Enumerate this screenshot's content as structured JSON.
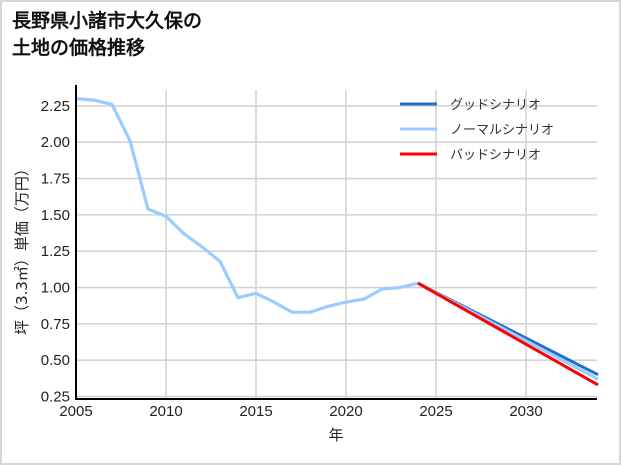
{
  "title": {
    "line1": "長野県小諸市大久保の",
    "line2": "土地の価格推移"
  },
  "chart_data": {
    "type": "line",
    "title": "長野県小諸市大久保の土地の価格推移",
    "xlabel": "年",
    "ylabel": "坪（3.3㎡）単価（万円）",
    "xlim": [
      2005,
      2034
    ],
    "ylim": [
      0.25,
      2.35
    ],
    "x_ticks": [
      2005,
      2010,
      2015,
      2020,
      2025,
      2030
    ],
    "y_ticks": [
      0.25,
      0.5,
      0.75,
      1.0,
      1.25,
      1.5,
      1.75,
      2.0,
      2.25
    ],
    "y_tick_labels": [
      "0.25",
      "0.50",
      "0.75",
      "1.00",
      "1.25",
      "1.50",
      "1.75",
      "2.00",
      "2.25"
    ],
    "grid": true,
    "legend_position": "upper right",
    "series": [
      {
        "name": "グッドシナリオ",
        "color": "#1f6fc5",
        "x": [
          2024,
          2034
        ],
        "values": [
          1.03,
          0.4
        ]
      },
      {
        "name": "ノーマルシナリオ",
        "color": "#99ccff",
        "x": [
          2005,
          2006,
          2007,
          2008,
          2009,
          2010,
          2011,
          2012,
          2013,
          2014,
          2015,
          2016,
          2017,
          2018,
          2019,
          2020,
          2021,
          2022,
          2023,
          2024,
          2034
        ],
        "values": [
          2.3,
          2.29,
          2.26,
          2.01,
          1.54,
          1.49,
          1.37,
          1.28,
          1.18,
          0.93,
          0.96,
          0.9,
          0.83,
          0.83,
          0.87,
          0.9,
          0.92,
          0.99,
          1.0,
          1.03,
          0.37
        ]
      },
      {
        "name": "バッドシナリオ",
        "color": "#ff0000",
        "x": [
          2024,
          2034
        ],
        "values": [
          1.03,
          0.33
        ]
      }
    ]
  }
}
